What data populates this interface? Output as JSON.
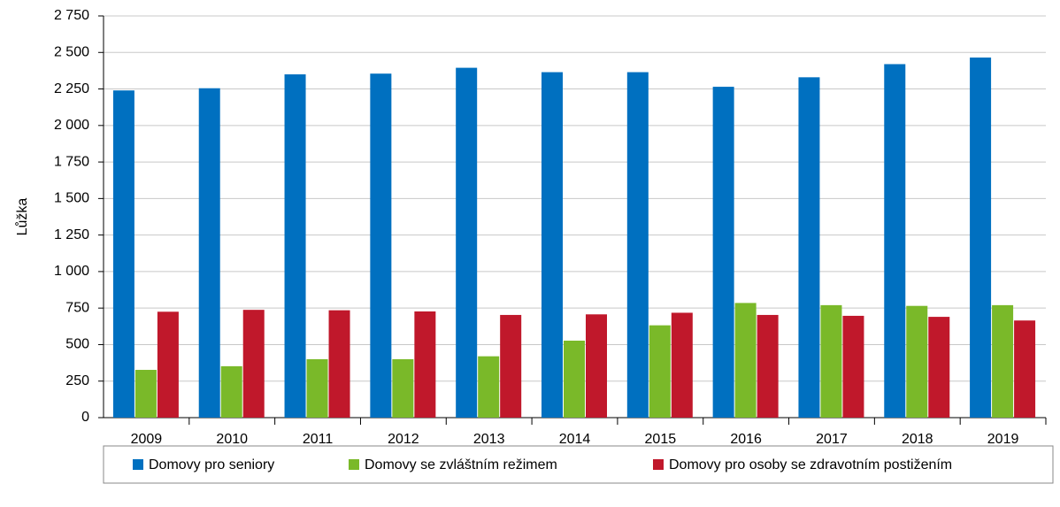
{
  "chart_data": {
    "type": "bar",
    "ylabel": "Lůžka",
    "categories": [
      "2009",
      "2010",
      "2011",
      "2012",
      "2013",
      "2014",
      "2015",
      "2016",
      "2017",
      "2018",
      "2019"
    ],
    "series": [
      {
        "name": "Domovy pro seniory",
        "color": "#0070c0",
        "values": [
          2240,
          2255,
          2350,
          2355,
          2395,
          2365,
          2365,
          2265,
          2330,
          2420,
          2465
        ]
      },
      {
        "name": "Domovy se zvláštním režimem",
        "color": "#7ab929",
        "values": [
          327,
          352,
          400,
          400,
          420,
          527,
          632,
          785,
          770,
          765,
          770
        ]
      },
      {
        "name": "Domovy pro osoby se zdravotním postižením",
        "color": "#c0182b",
        "values": [
          725,
          738,
          735,
          727,
          703,
          707,
          718,
          703,
          697,
          690,
          665
        ]
      }
    ],
    "ylim": [
      0,
      2750
    ],
    "yticks": [
      0,
      250,
      500,
      750,
      {
        "value": 1000,
        "label": "1 000"
      },
      {
        "value": 1250,
        "label": "1 250"
      },
      {
        "value": 1500,
        "label": "1 500"
      },
      {
        "value": 1750,
        "label": "1 750"
      },
      {
        "value": 2000,
        "label": "2 000"
      },
      {
        "value": 2250,
        "label": "2 250"
      },
      {
        "value": 2500,
        "label": "2 500"
      },
      {
        "value": 2750,
        "label": "2 750"
      }
    ],
    "grid": true,
    "legend": "bottom"
  }
}
